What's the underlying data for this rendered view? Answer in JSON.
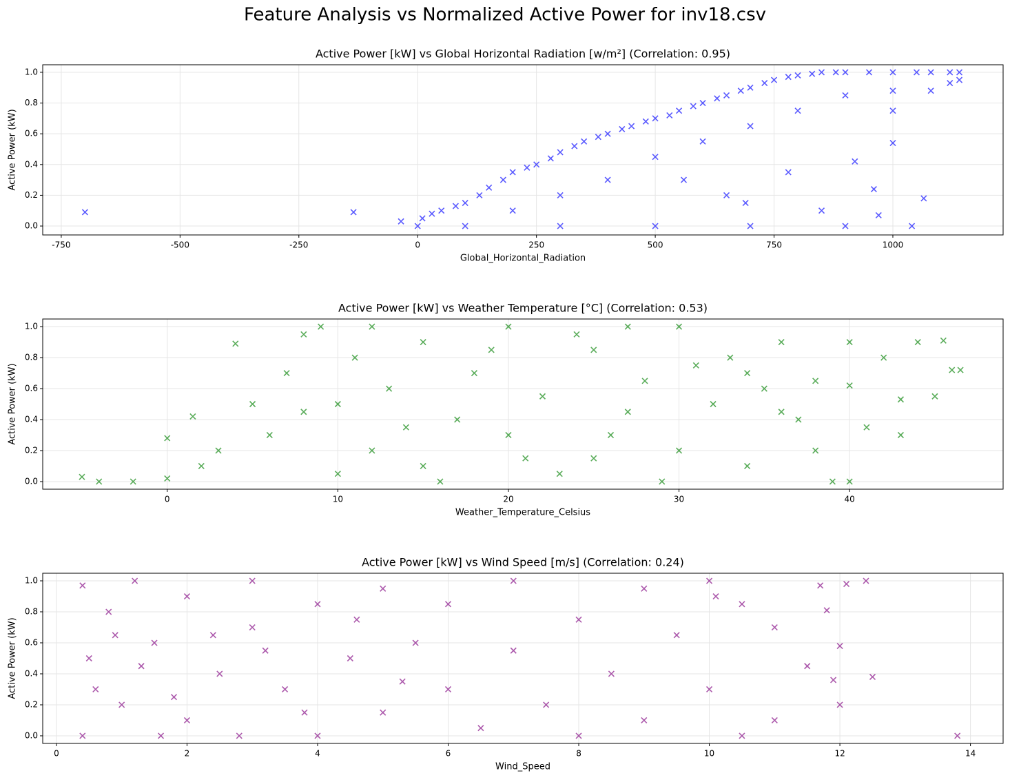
{
  "title": "Feature Analysis vs Normalized Active Power for inv18.csv",
  "chart_data": [
    {
      "type": "scatter",
      "title": "Active Power [kW] vs Global Horizontal Radiation [w/m²] (Correlation: 0.95)",
      "x_label": "Global_Horizontal_Radiation",
      "y_label": "Active Power (kW)",
      "color": "#0000ff",
      "marker": "x",
      "grid": true,
      "xlim": [
        -789,
        1232
      ],
      "ylim": [
        -0.058,
        1.049
      ],
      "xticks": [
        -750,
        -500,
        -250,
        0,
        250,
        500,
        750,
        1000
      ],
      "yticks": [
        {
          "value": 0,
          "label": "0.0"
        },
        0.2,
        0.4,
        0.6,
        0.8,
        {
          "value": 1,
          "label": "1.0"
        }
      ],
      "x": [
        -700,
        -135,
        -35,
        0,
        10,
        30,
        50,
        80,
        100,
        130,
        150,
        180,
        200,
        230,
        250,
        280,
        300,
        330,
        350,
        380,
        400,
        430,
        450,
        480,
        500,
        530,
        550,
        580,
        600,
        630,
        650,
        680,
        700,
        730,
        750,
        780,
        800,
        830,
        850,
        880,
        900,
        950,
        1000,
        1050,
        1080,
        1120,
        1140,
        1140,
        200,
        300,
        400,
        500,
        600,
        700,
        800,
        900,
        1000,
        100,
        300,
        500,
        700,
        900,
        1040,
        650,
        780,
        920,
        1000,
        1065,
        850,
        970,
        1000,
        1120,
        1080,
        560,
        690,
        960
      ],
      "values": [
        0.09,
        0.09,
        0.03,
        0,
        0.05,
        0.08,
        0.1,
        0.13,
        0.15,
        0.2,
        0.25,
        0.3,
        0.35,
        0.38,
        0.4,
        0.44,
        0.48,
        0.52,
        0.55,
        0.58,
        0.6,
        0.63,
        0.65,
        0.68,
        0.7,
        0.72,
        0.75,
        0.78,
        0.8,
        0.83,
        0.85,
        0.88,
        0.9,
        0.93,
        0.95,
        0.97,
        0.98,
        0.99,
        1.0,
        1.0,
        1.0,
        1.0,
        1.0,
        1.0,
        1.0,
        1.0,
        1.0,
        0.95,
        0.1,
        0.2,
        0.3,
        0.45,
        0.55,
        0.65,
        0.75,
        0.85,
        0.88,
        0,
        0,
        0,
        0,
        0,
        0,
        0.2,
        0.35,
        0.42,
        0.54,
        0.18,
        0.1,
        0.07,
        0.75,
        0.93,
        0.88,
        0.3,
        0.15,
        0.24
      ]
    },
    {
      "type": "scatter",
      "title": "Active Power [kW] vs Weather Temperature [°C] (Correlation: 0.53)",
      "x_label": "Weather_Temperature_Celsius",
      "y_label": "Active Power (kW)",
      "color": "#008000",
      "marker": "x",
      "grid": true,
      "xlim": [
        -7.3,
        49
      ],
      "ylim": [
        -0.049,
        1.049
      ],
      "xticks": [
        0,
        10,
        20,
        30,
        40
      ],
      "yticks": [
        {
          "value": 0,
          "label": "0.0"
        },
        0.2,
        0.4,
        0.6,
        0.8,
        {
          "value": 1,
          "label": "1.0"
        }
      ],
      "x": [
        -5,
        -4,
        -2,
        0,
        0,
        1.5,
        2,
        3,
        4,
        5,
        6,
        7,
        8,
        9,
        10,
        11,
        12,
        13,
        15,
        15,
        17,
        18,
        20,
        20,
        22,
        23,
        25,
        25,
        27,
        28,
        30,
        30,
        32,
        33,
        34,
        35,
        36,
        37,
        38,
        39,
        40,
        40,
        41,
        42,
        43,
        44,
        45,
        45.5,
        46,
        46.5,
        43,
        40,
        36,
        14,
        19,
        26,
        31,
        8,
        16,
        29,
        12,
        24,
        34,
        21,
        10,
        27,
        38
      ],
      "values": [
        0.03,
        0,
        0,
        0.02,
        0.28,
        0.42,
        0.1,
        0.2,
        0.89,
        0.5,
        0.3,
        0.7,
        0.95,
        1.0,
        0.5,
        0.8,
        0.2,
        0.6,
        0.9,
        0.1,
        0.4,
        0.7,
        1.0,
        0.3,
        0.55,
        0.05,
        0.85,
        0.15,
        0.45,
        0.65,
        1.0,
        0.2,
        0.5,
        0.8,
        0.1,
        0.6,
        0.9,
        0.4,
        0.2,
        0,
        0,
        0.9,
        0.35,
        0.8,
        0.3,
        0.9,
        0.55,
        0.91,
        0.72,
        0.72,
        0.53,
        0.62,
        0.45,
        0.35,
        0.85,
        0.3,
        0.75,
        0.45,
        0,
        0,
        1.0,
        0.95,
        0.7,
        0.15,
        0.05,
        1.0,
        0.65
      ]
    },
    {
      "type": "scatter",
      "title": "Active Power [kW] vs Wind Speed [m/s] (Correlation: 0.24)",
      "x_label": "Wind_Speed",
      "y_label": "Active Power (kW)",
      "color": "#800080",
      "marker": "x",
      "grid": true,
      "xlim": [
        -0.21,
        14.5
      ],
      "ylim": [
        -0.049,
        1.049
      ],
      "xticks": [
        0,
        2,
        4,
        6,
        8,
        10,
        12,
        14
      ],
      "yticks": [
        {
          "value": 0,
          "label": "0.0"
        },
        0.2,
        0.4,
        0.6,
        0.8,
        {
          "value": 1,
          "label": "1.0"
        }
      ],
      "x": [
        0.4,
        0.4,
        0.5,
        0.8,
        1,
        1.2,
        1.5,
        2,
        2,
        2.5,
        3,
        3,
        3.5,
        4,
        4,
        4.5,
        5,
        5,
        5.5,
        6,
        6,
        6.5,
        7,
        7,
        7.5,
        8,
        8,
        8.5,
        9,
        9,
        9.5,
        10,
        10,
        10.5,
        10.5,
        11,
        11,
        11.5,
        11.7,
        12,
        12,
        12.1,
        12.4,
        12.5,
        13.8,
        11.9,
        10.1,
        11.8,
        1.3,
        1.8,
        2.4,
        3.2,
        3.8,
        4.6,
        5.3,
        0.6,
        0.9,
        1.6,
        2.8
      ],
      "values": [
        0,
        0.97,
        0.5,
        0.8,
        0.2,
        1.0,
        0.6,
        0.9,
        0.1,
        0.4,
        0.7,
        1.0,
        0.3,
        0.85,
        0,
        0.5,
        0.15,
        0.95,
        0.6,
        0.3,
        0.85,
        0.05,
        0.55,
        1.0,
        0.2,
        0.75,
        0,
        0.4,
        0.95,
        0.1,
        0.65,
        0.3,
        1.0,
        0.85,
        0,
        0.7,
        0.1,
        0.45,
        0.97,
        0.2,
        0.58,
        0.98,
        1.0,
        0.38,
        0,
        0.36,
        0.9,
        0.81,
        0.45,
        0.25,
        0.65,
        0.55,
        0.15,
        0.75,
        0.35,
        0.3,
        0.65,
        0,
        0
      ]
    }
  ]
}
